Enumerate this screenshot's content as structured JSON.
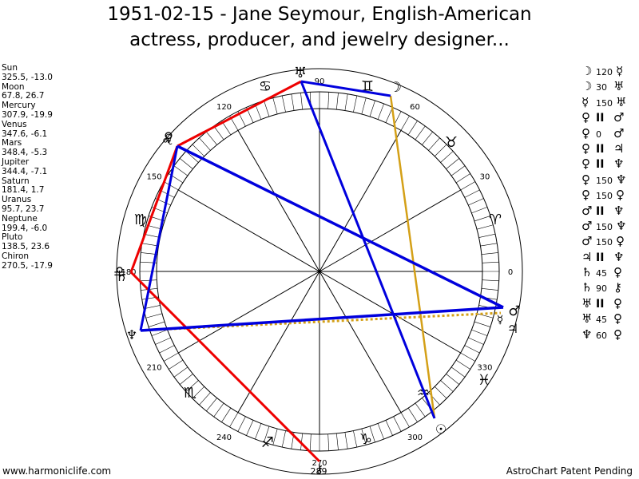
{
  "header": {
    "line1": "1951-02-15 - Jane Seymour, English-American",
    "line2": "actress, producer, and jewelry designer..."
  },
  "positions": [
    {
      "name": "Sun",
      "coords": "325.5, -13.0"
    },
    {
      "name": "Moon",
      "coords": "67.8, 26.7"
    },
    {
      "name": "Mercury",
      "coords": "307.9, -19.9"
    },
    {
      "name": "Venus",
      "coords": "347.6, -6.1"
    },
    {
      "name": "Mars",
      "coords": "348.4, -5.3"
    },
    {
      "name": "Jupiter",
      "coords": "344.4, -7.1"
    },
    {
      "name": "Saturn",
      "coords": "181.4, 1.7"
    },
    {
      "name": "Uranus",
      "coords": "95.7, 23.7"
    },
    {
      "name": "Neptune",
      "coords": "199.4, -6.0"
    },
    {
      "name": "Pluto",
      "coords": "138.5, 23.6"
    },
    {
      "name": "Chiron",
      "coords": "270.5, -17.9"
    }
  ],
  "aspects": [
    {
      "a": "☽",
      "v": "120",
      "b": "☿"
    },
    {
      "a": "☽",
      "v": "30",
      "b": "♅"
    },
    {
      "a": "☿",
      "v": "150",
      "b": "♅"
    },
    {
      "a": "♀",
      "v": "II",
      "b": "♂"
    },
    {
      "a": "♀",
      "v": "0",
      "b": "♂"
    },
    {
      "a": "♀",
      "v": "II",
      "b": "♃"
    },
    {
      "a": "♀",
      "v": "II",
      "b": "♆"
    },
    {
      "a": "♀",
      "v": "150",
      "b": "♆"
    },
    {
      "a": "♀",
      "v": "150",
      "b": "♀"
    },
    {
      "a": "♂",
      "v": "II",
      "b": "♆"
    },
    {
      "a": "♂",
      "v": "150",
      "b": "♆"
    },
    {
      "a": "♂",
      "v": "150",
      "b": "♀"
    },
    {
      "a": "♃",
      "v": "II",
      "b": "♆"
    },
    {
      "a": "♄",
      "v": "45",
      "b": "♀"
    },
    {
      "a": "♄",
      "v": "90",
      "b": "⚷"
    },
    {
      "a": "♅",
      "v": "II",
      "b": "♀"
    },
    {
      "a": "♅",
      "v": "45",
      "b": "♀"
    },
    {
      "a": "♆",
      "v": "60",
      "b": "♀"
    }
  ],
  "wheel": {
    "degree_labels": [
      "0",
      "30",
      "60",
      "90",
      "120",
      "150",
      "180",
      "210",
      "240",
      "270",
      "300",
      "330"
    ],
    "extra_label": "289",
    "zodiac": [
      "♈",
      "♉",
      "♊",
      "♋",
      "♌",
      "♍",
      "♎",
      "♏",
      "♐",
      "♑",
      "♒",
      "♓"
    ],
    "planet_glyphs": {
      "sun": "☉",
      "moon": "☽",
      "mercury": "☿",
      "venus": "♀",
      "mars": "♂",
      "jupiter": "♃",
      "saturn": "♄",
      "uranus": "♅",
      "neptune": "♆",
      "pluto": "♀",
      "chiron": "⚷"
    },
    "colors": {
      "red": "#ee0000",
      "blue": "#0000dd",
      "gold": "#d4a017",
      "dotted": "#d4a017"
    }
  },
  "footer": {
    "left": "www.harmoniclife.com",
    "right": "AstroChart Patent Pending"
  }
}
